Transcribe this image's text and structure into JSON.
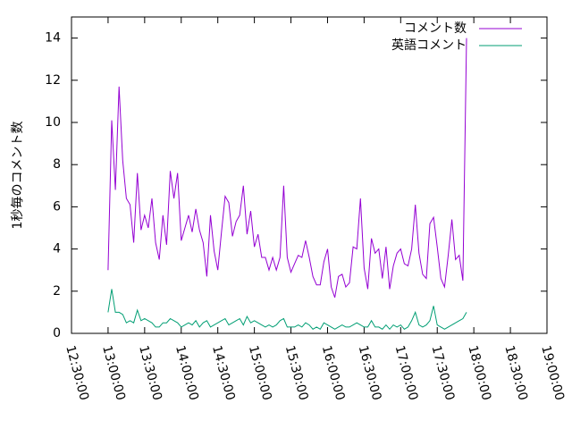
{
  "chart_data": {
    "type": "line",
    "title": "",
    "xlabel": "",
    "ylabel": "1秒毎のコメント数",
    "xlim": [
      "12:30:00",
      "19:00:00"
    ],
    "ylim": [
      0,
      15
    ],
    "grid": false,
    "legend": "top-right",
    "x_ticks": [
      "12:30:00",
      "13:00:00",
      "13:30:00",
      "14:00:00",
      "14:30:00",
      "15:00:00",
      "15:30:00",
      "16:00:00",
      "16:30:00",
      "17:00:00",
      "17:30:00",
      "18:00:00",
      "18:30:00",
      "19:00:00"
    ],
    "y_ticks": [
      0,
      2,
      4,
      6,
      8,
      10,
      12,
      14
    ],
    "x_start": "13:00:00",
    "x_step_minutes": 3,
    "series": [
      {
        "name": "コメント数",
        "color": "#9400d3",
        "values": [
          3.0,
          10.1,
          6.8,
          11.7,
          8.2,
          6.4,
          6.1,
          4.3,
          7.6,
          4.9,
          5.6,
          5.0,
          6.4,
          4.3,
          3.5,
          5.6,
          4.2,
          7.7,
          6.4,
          7.6,
          4.4,
          5.0,
          5.6,
          4.8,
          5.9,
          4.9,
          4.3,
          2.7,
          5.6,
          3.9,
          3.0,
          4.8,
          6.5,
          6.2,
          4.6,
          5.3,
          5.6,
          7.0,
          4.7,
          5.8,
          4.1,
          4.7,
          3.6,
          3.6,
          3.0,
          3.6,
          3.0,
          3.6,
          7.0,
          3.6,
          2.9,
          3.3,
          3.7,
          3.6,
          4.4,
          3.6,
          2.7,
          2.3,
          2.3,
          3.4,
          4.0,
          2.2,
          1.7,
          2.7,
          2.8,
          2.2,
          2.4,
          4.1,
          4.0,
          6.4,
          3.1,
          2.1,
          4.5,
          3.8,
          4.0,
          2.6,
          4.1,
          2.1,
          3.2,
          3.8,
          4.0,
          3.3,
          3.2,
          4.0,
          6.1,
          3.8,
          2.8,
          2.6,
          5.2,
          5.5,
          4.1,
          2.6,
          2.2,
          3.7,
          5.4,
          3.5,
          3.7,
          2.5,
          14.0
        ]
      },
      {
        "name": "英語コメント",
        "color": "#009e73",
        "values": [
          1.0,
          2.1,
          1.0,
          1.0,
          0.9,
          0.5,
          0.6,
          0.5,
          1.1,
          0.6,
          0.7,
          0.6,
          0.5,
          0.3,
          0.3,
          0.5,
          0.5,
          0.7,
          0.6,
          0.5,
          0.3,
          0.4,
          0.5,
          0.4,
          0.6,
          0.3,
          0.5,
          0.6,
          0.3,
          0.4,
          0.5,
          0.6,
          0.7,
          0.4,
          0.5,
          0.6,
          0.7,
          0.4,
          0.8,
          0.5,
          0.6,
          0.5,
          0.4,
          0.3,
          0.4,
          0.3,
          0.4,
          0.6,
          0.7,
          0.3,
          0.3,
          0.3,
          0.4,
          0.3,
          0.5,
          0.4,
          0.2,
          0.3,
          0.2,
          0.5,
          0.4,
          0.3,
          0.2,
          0.3,
          0.4,
          0.3,
          0.3,
          0.4,
          0.5,
          0.4,
          0.3,
          0.3,
          0.6,
          0.3,
          0.3,
          0.2,
          0.4,
          0.2,
          0.4,
          0.3,
          0.4,
          0.2,
          0.3,
          0.6,
          1.0,
          0.4,
          0.3,
          0.4,
          0.6,
          1.3,
          0.4,
          0.3,
          0.2,
          0.3,
          0.4,
          0.5,
          0.6,
          0.7,
          1.0
        ]
      }
    ]
  }
}
